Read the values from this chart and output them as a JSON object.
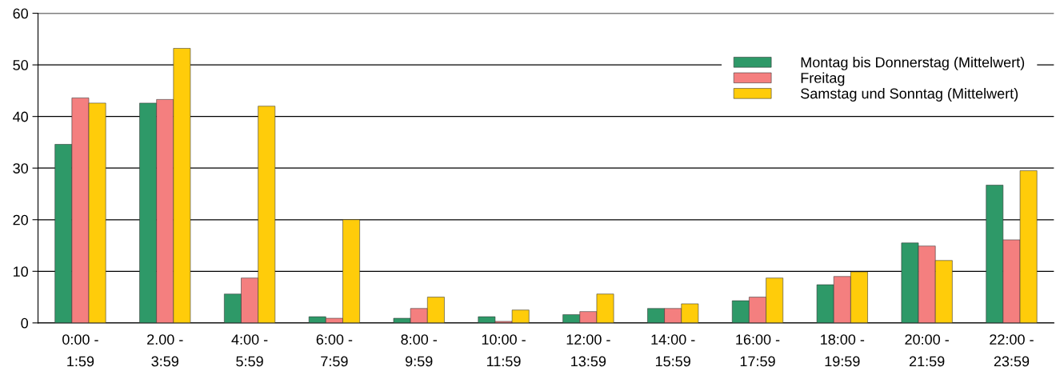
{
  "chart_data": {
    "type": "bar",
    "categories": [
      "0:00 -\n1:59",
      "2.00 -\n3:59",
      "4:00 -\n5:59",
      "6:00 -\n7:59",
      "8:00 -\n9:59",
      "10:00 -\n11:59",
      "12:00 -\n13:59",
      "14:00 -\n15:59",
      "16:00 -\n17:59",
      "18:00 -\n19:59",
      "20:00 -\n21:59",
      "22:00 -\n23:59"
    ],
    "series": [
      {
        "name": "Montag bis Donnerstag (Mittelwert)",
        "color": "#2e9968",
        "values": [
          34.6,
          42.6,
          5.6,
          1.2,
          0.9,
          1.2,
          1.6,
          2.8,
          4.3,
          7.4,
          15.5,
          26.7
        ]
      },
      {
        "name": "Freitag",
        "color": "#f47f7f",
        "values": [
          43.6,
          43.3,
          8.7,
          0.9,
          2.8,
          0.3,
          2.2,
          2.8,
          5.0,
          9.0,
          14.9,
          16.1
        ]
      },
      {
        "name": "Samstag und Sonntag (Mittelwert)",
        "color": "#ffcc0a",
        "values": [
          42.6,
          53.2,
          42.0,
          20.0,
          5.0,
          2.5,
          5.6,
          3.7,
          8.7,
          9.9,
          12.1,
          29.5
        ]
      }
    ],
    "ylim": [
      0,
      60
    ],
    "yticks": [
      0,
      10,
      20,
      30,
      40,
      50,
      60
    ],
    "grid": "y",
    "legend": "top right"
  }
}
